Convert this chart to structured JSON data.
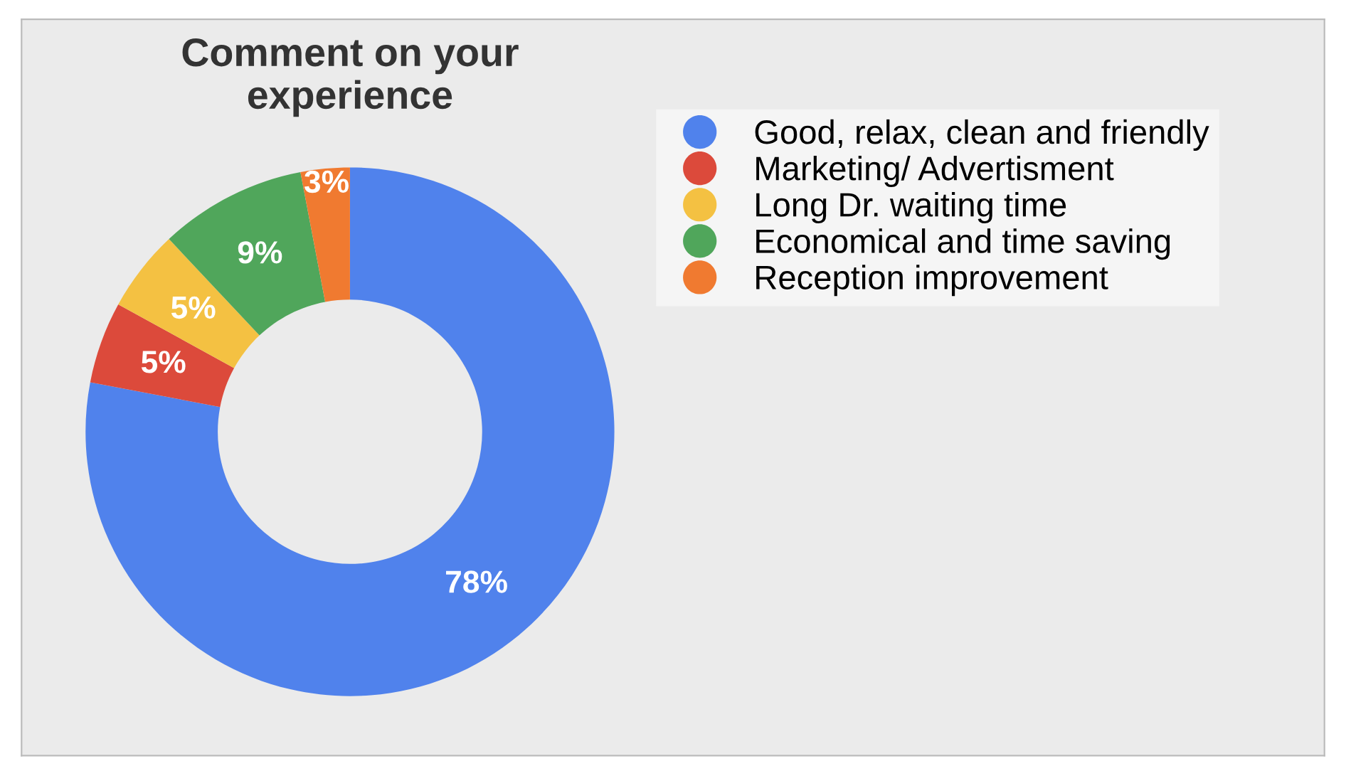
{
  "chart_data": {
    "type": "donut",
    "title": "Comment on your experience",
    "categories": [
      "Good, relax, clean and friendly",
      "Marketing/ Advertisment",
      "Long Dr. waiting time",
      "Economical and time saving",
      "Reception improvement"
    ],
    "values": [
      78,
      5,
      5,
      9,
      3
    ],
    "colors": [
      "#5082ec",
      "#dc4a3b",
      "#f4c142",
      "#50a65b",
      "#f07a30"
    ],
    "value_labels": [
      "78%",
      "5%",
      "5%",
      "9%",
      "3%"
    ],
    "legend": "right"
  }
}
